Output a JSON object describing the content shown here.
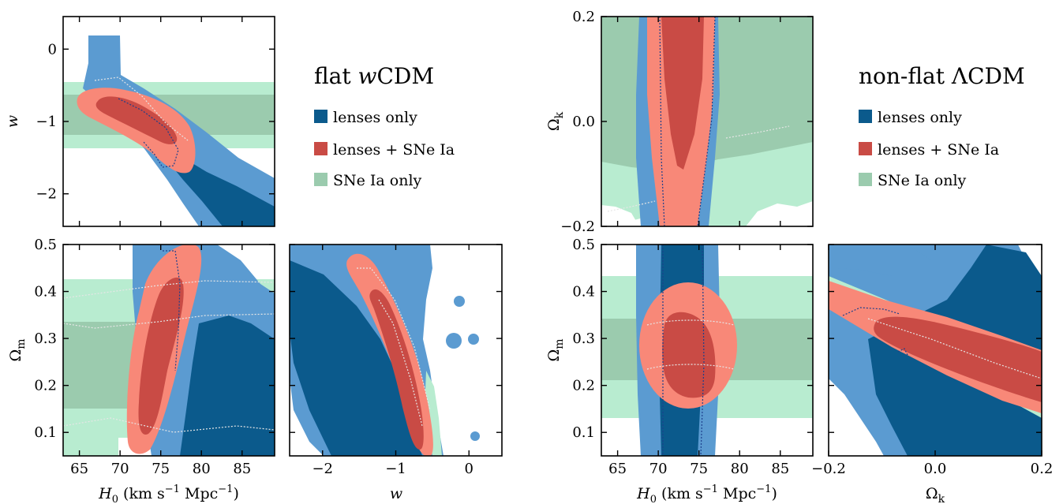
{
  "colors": {
    "lenses_dark": "#0b5a8c",
    "lenses_light": "#5b9bd1",
    "combined_dark": "#c94b45",
    "combined_light": "#f88878",
    "sne_dark": "#9bcbae",
    "sne_light": "#b8ecd0"
  },
  "chart_data": [
    {
      "type": "contour",
      "group": "flat wCDM",
      "xlabel": "",
      "ylabel": "w",
      "xlim": [
        63,
        89
      ],
      "ylim": [
        -2.45,
        0.45
      ],
      "x_ticks": [],
      "y_ticks": [
        "0",
        "−1",
        "−2"
      ],
      "y_tick_values": [
        0,
        -1,
        -2
      ]
    },
    {
      "type": "contour",
      "group": "flat wCDM",
      "xlabel": "H0 (km s−1 Mpc−1)",
      "ylabel": "Ωm",
      "xlim": [
        63,
        89
      ],
      "ylim": [
        0.05,
        0.5
      ],
      "x_ticks": [
        "65",
        "70",
        "75",
        "80",
        "85"
      ],
      "x_tick_values": [
        65,
        70,
        75,
        80,
        85
      ],
      "y_ticks": [
        "0.5",
        "0.4",
        "0.3",
        "0.2",
        "0.1"
      ],
      "y_tick_values": [
        0.5,
        0.4,
        0.3,
        0.2,
        0.1
      ]
    },
    {
      "type": "contour",
      "group": "flat wCDM",
      "xlabel": "w",
      "ylabel": "",
      "xlim": [
        -2.45,
        0.45
      ],
      "ylim": [
        0.05,
        0.5
      ],
      "x_ticks": [
        "−2",
        "−1",
        "0"
      ],
      "x_tick_values": [
        -2,
        -1,
        0
      ]
    },
    {
      "type": "contour",
      "group": "non-flat ΛCDM",
      "xlabel": "",
      "ylabel": "Ωk",
      "xlim": [
        63,
        89
      ],
      "ylim": [
        -0.2,
        0.2
      ],
      "y_ticks": [
        "0.2",
        "0.0",
        "−0.2"
      ],
      "y_tick_values": [
        0.2,
        0.0,
        -0.2
      ]
    },
    {
      "type": "contour",
      "group": "non-flat ΛCDM",
      "xlabel": "H0 (km s−1 Mpc−1)",
      "ylabel": "Ωm",
      "xlim": [
        63,
        89
      ],
      "ylim": [
        0.05,
        0.5
      ],
      "x_ticks": [
        "65",
        "70",
        "75",
        "80",
        "85"
      ],
      "x_tick_values": [
        65,
        70,
        75,
        80,
        85
      ],
      "y_ticks": [
        "0.5",
        "0.4",
        "0.3",
        "0.2",
        "0.1"
      ],
      "y_tick_values": [
        0.5,
        0.4,
        0.3,
        0.2,
        0.1
      ]
    },
    {
      "type": "contour",
      "group": "non-flat ΛCDM",
      "xlabel": "Ωk",
      "ylabel": "",
      "xlim": [
        -0.2,
        0.2
      ],
      "ylim": [
        0.05,
        0.5
      ],
      "x_ticks": [
        "−0.2",
        "0.0",
        "0.2"
      ],
      "x_tick_values": [
        -0.2,
        0.0,
        0.2
      ]
    }
  ],
  "legend_left": {
    "title_prefix": "flat ",
    "title_italic": "w",
    "title_suffix": "CDM",
    "items": [
      "lenses only",
      "lenses + SNe Ia",
      "SNe Ia only"
    ]
  },
  "legend_right": {
    "title": "non-flat ΛCDM",
    "items": [
      "lenses only",
      "lenses + SNe Ia",
      "SNe Ia only"
    ]
  },
  "axis_text": {
    "h0_italic": "H",
    "h0_sub": "0",
    "h0_unit_a": " (km s",
    "h0_sup": "−1",
    "h0_unit_b": " Mpc",
    "h0_unit_c": ")",
    "w": "w",
    "omega_m": "Ω",
    "omega_m_sub": "m",
    "omega_k": "Ω",
    "omega_k_sub": "k"
  }
}
